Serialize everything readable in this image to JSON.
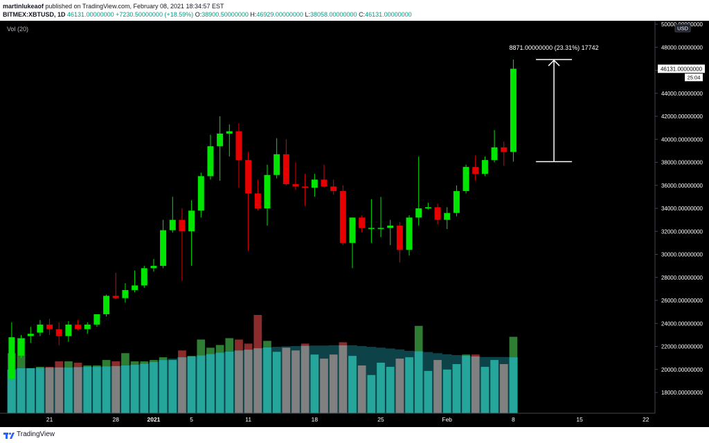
{
  "header": {
    "publisher": "martinlukeaof",
    "published_text": "published on TradingView.com, February 08, 2021 18:34:57 EST",
    "symbol": "BITMEX:XBTUSD, 1D",
    "last": "46131.00000000",
    "change": "+7230.50000000 (+18.59%)",
    "o_label": "O:",
    "o_value": "38900.50000000",
    "h_label": "H:",
    "h_value": "46929.00000000",
    "l_label": "L:",
    "l_value": "38058.00000000",
    "c_label": "C:",
    "c_value": "46131.00000000"
  },
  "volume_label": "Vol (20)",
  "footer": {
    "brand": "TradingView"
  },
  "colors": {
    "up": "#00e600",
    "down": "#e60000",
    "vol_up": "#26a69a",
    "vol_down": "#808080",
    "vol_up_top": "#2e7d32",
    "vol_down_top": "#8b2b2b",
    "vol_ma_fill": "#0f4f55",
    "background": "#000000",
    "axis_text": "#ffffff"
  },
  "chart_data": {
    "type": "candlestick",
    "ylim": [
      16000,
      50000
    ],
    "y_ticks": [
      "18000.00000000",
      "20000.00000000",
      "22000.00000000",
      "24000.00000000",
      "26000.00000000",
      "28000.00000000",
      "30000.00000000",
      "32000.00000000",
      "34000.00000000",
      "36000.00000000",
      "38000.00000000",
      "40000.00000000",
      "42000.00000000",
      "44000.00000000",
      "46000.00000000",
      "48000.00000000",
      "50000.00000000"
    ],
    "x_ticks": [
      {
        "index": 4,
        "label": "21"
      },
      {
        "index": 11,
        "label": "28"
      },
      {
        "index": 15,
        "label": "2021"
      },
      {
        "index": 19,
        "label": "5"
      },
      {
        "index": 25,
        "label": "11"
      },
      {
        "index": 32,
        "label": "18"
      },
      {
        "index": 39,
        "label": "25"
      },
      {
        "index": 46,
        "label": "Feb"
      },
      {
        "index": 53,
        "label": "8"
      },
      {
        "index": 60,
        "label": "15"
      },
      {
        "index": 67,
        "label": "22"
      }
    ],
    "price_label": "46131.00000000",
    "countdown": "25:04",
    "currency": "USD",
    "measure": {
      "from": 38058,
      "to": 46929,
      "index": 57,
      "label": "8871.00000000 (23.31%) 17742"
    },
    "candles": [
      {
        "o": 19200,
        "h": 24100,
        "l": 19000,
        "c": 22800
      },
      {
        "o": 21200,
        "h": 23000,
        "l": 21000,
        "c": 22700
      },
      {
        "o": 22900,
        "h": 23700,
        "l": 22300,
        "c": 23100
      },
      {
        "o": 23200,
        "h": 24300,
        "l": 22900,
        "c": 23900
      },
      {
        "o": 23900,
        "h": 24400,
        "l": 23000,
        "c": 23500
      },
      {
        "o": 23500,
        "h": 24100,
        "l": 22100,
        "c": 22900
      },
      {
        "o": 22900,
        "h": 24200,
        "l": 22400,
        "c": 23900
      },
      {
        "o": 23900,
        "h": 24300,
        "l": 23400,
        "c": 23500
      },
      {
        "o": 23500,
        "h": 24100,
        "l": 23100,
        "c": 23900
      },
      {
        "o": 23900,
        "h": 24800,
        "l": 23700,
        "c": 24800
      },
      {
        "o": 24800,
        "h": 26500,
        "l": 24600,
        "c": 26400
      },
      {
        "o": 26400,
        "h": 28400,
        "l": 26100,
        "c": 26200
      },
      {
        "o": 26200,
        "h": 27500,
        "l": 25800,
        "c": 26900
      },
      {
        "o": 26900,
        "h": 28600,
        "l": 26700,
        "c": 27300
      },
      {
        "o": 27300,
        "h": 29000,
        "l": 27100,
        "c": 28800
      },
      {
        "o": 28800,
        "h": 29600,
        "l": 28500,
        "c": 29000
      },
      {
        "o": 29000,
        "h": 33000,
        "l": 28800,
        "c": 32100
      },
      {
        "o": 32100,
        "h": 35000,
        "l": 31900,
        "c": 33000
      },
      {
        "o": 33000,
        "h": 34000,
        "l": 27700,
        "c": 32000
      },
      {
        "o": 32000,
        "h": 34700,
        "l": 29000,
        "c": 33800
      },
      {
        "o": 33800,
        "h": 37100,
        "l": 33200,
        "c": 36800
      },
      {
        "o": 36800,
        "h": 40400,
        "l": 36500,
        "c": 39400
      },
      {
        "o": 39400,
        "h": 42000,
        "l": 36400,
        "c": 40500
      },
      {
        "o": 40500,
        "h": 41300,
        "l": 38500,
        "c": 40700
      },
      {
        "o": 40700,
        "h": 41400,
        "l": 35800,
        "c": 38200
      },
      {
        "o": 38200,
        "h": 38900,
        "l": 30300,
        "c": 35300
      },
      {
        "o": 35300,
        "h": 36500,
        "l": 33800,
        "c": 34000
      },
      {
        "o": 34000,
        "h": 37800,
        "l": 32500,
        "c": 36900
      },
      {
        "o": 36900,
        "h": 40100,
        "l": 36600,
        "c": 38700
      },
      {
        "o": 38700,
        "h": 40000,
        "l": 36000,
        "c": 36100
      },
      {
        "o": 36100,
        "h": 38000,
        "l": 35600,
        "c": 35900
      },
      {
        "o": 35900,
        "h": 37000,
        "l": 34200,
        "c": 35800
      },
      {
        "o": 35800,
        "h": 37000,
        "l": 35000,
        "c": 36500
      },
      {
        "o": 36500,
        "h": 37800,
        "l": 35800,
        "c": 35900
      },
      {
        "o": 35900,
        "h": 36500,
        "l": 35200,
        "c": 35500
      },
      {
        "o": 35500,
        "h": 36000,
        "l": 30800,
        "c": 31000
      },
      {
        "o": 31000,
        "h": 33000,
        "l": 28800,
        "c": 33200
      },
      {
        "o": 33200,
        "h": 33400,
        "l": 31900,
        "c": 32300
      },
      {
        "o": 32300,
        "h": 34800,
        "l": 31000,
        "c": 32300
      },
      {
        "o": 32300,
        "h": 35000,
        "l": 31500,
        "c": 32300
      },
      {
        "o": 32300,
        "h": 33000,
        "l": 30800,
        "c": 32500
      },
      {
        "o": 32500,
        "h": 32800,
        "l": 29300,
        "c": 30400
      },
      {
        "o": 30400,
        "h": 33400,
        "l": 29900,
        "c": 33200
      },
      {
        "o": 33200,
        "h": 38500,
        "l": 32500,
        "c": 34000
      },
      {
        "o": 34000,
        "h": 34500,
        "l": 33900,
        "c": 34100
      },
      {
        "o": 34100,
        "h": 34400,
        "l": 32600,
        "c": 33000
      },
      {
        "o": 33000,
        "h": 34100,
        "l": 32200,
        "c": 33600
      },
      {
        "o": 33600,
        "h": 36000,
        "l": 33300,
        "c": 35500
      },
      {
        "o": 35500,
        "h": 37800,
        "l": 35300,
        "c": 37600
      },
      {
        "o": 37600,
        "h": 38600,
        "l": 36400,
        "c": 37000
      },
      {
        "o": 37000,
        "h": 38500,
        "l": 36800,
        "c": 38200
      },
      {
        "o": 38200,
        "h": 40800,
        "l": 38000,
        "c": 39300
      },
      {
        "o": 39300,
        "h": 39800,
        "l": 37700,
        "c": 38900
      },
      {
        "o": 38900,
        "h": 46929,
        "l": 38058,
        "c": 46131
      }
    ],
    "volume": {
      "max": 36000,
      "values": [
        22000,
        27500,
        16500,
        17000,
        17000,
        19000,
        19000,
        18500,
        17500,
        17500,
        19500,
        19000,
        22000,
        19000,
        19000,
        19500,
        20500,
        19500,
        23000,
        21000,
        27000,
        24000,
        25000,
        27500,
        27000,
        25500,
        36000,
        26500,
        22500,
        24000,
        23000,
        25500,
        21500,
        20000,
        21500,
        26000,
        21000,
        17500,
        14000,
        18500,
        17000,
        20000,
        20500,
        32000,
        15500,
        19500,
        16000,
        18000,
        21500,
        21500,
        17000,
        19500,
        18000,
        28000
      ],
      "ma": [
        16000,
        16500,
        16500,
        16600,
        16700,
        16800,
        16800,
        16900,
        17000,
        17000,
        17200,
        17300,
        17500,
        17800,
        18200,
        18800,
        19500,
        20000,
        20500,
        20800,
        21200,
        21700,
        22200,
        22600,
        23000,
        23300,
        23800,
        24100,
        24300,
        24500,
        24600,
        24700,
        24800,
        24800,
        24900,
        24900,
        24900,
        24600,
        24300,
        24000,
        23700,
        23400,
        22900,
        22700,
        22400,
        22000,
        21600,
        21300,
        21100,
        20800,
        20600,
        20600,
        20600,
        20500
      ]
    }
  }
}
